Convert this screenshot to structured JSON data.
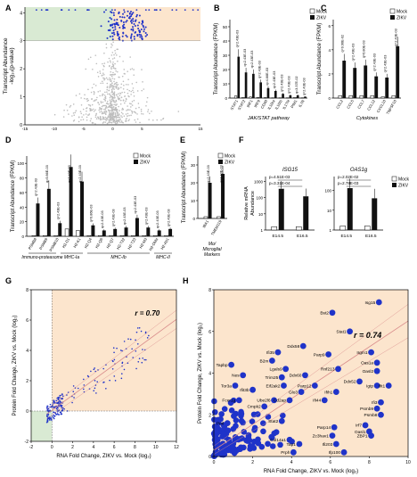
{
  "colors": {
    "point_blue": "#1f33c9",
    "grey": "#bdbdbd",
    "green_bg": "#d9ead3",
    "orange_bg": "#fce5cd",
    "zikv_bar": "#111111",
    "mock_bar": "#ffffff",
    "fit_line": "#d88a8a"
  },
  "panels": {
    "A": "A",
    "B": "B",
    "C": "C",
    "D": "D",
    "E": "E",
    "F": "F",
    "G": "G",
    "H": "H"
  },
  "legend": {
    "mock": "Mock",
    "zikv": "ZIKV"
  },
  "chart_data": [
    {
      "id": "A",
      "type": "scatter",
      "ylabel_line1": "Transcript Abundance",
      "ylabel_line2": "-log₁₀(p-value)",
      "x_ticks": [
        "-15",
        "-10",
        "-5",
        "0",
        "5",
        "15"
      ],
      "y_ticks": [
        "0",
        "1",
        "2",
        "3",
        "4"
      ],
      "xlim": [
        -15,
        15
      ],
      "ylim": [
        0,
        4.2
      ],
      "threshold_y": 3.0,
      "annotation_text": "~"
    },
    {
      "id": "B",
      "type": "bar",
      "xlabel": "JAK/STAT pathway",
      "ylabel": "Transcript Abundance (FPKM)",
      "y_ticks": [
        "0",
        "10",
        "20",
        "30",
        "40",
        "50"
      ],
      "ylim": [
        0,
        55
      ],
      "categories": [
        "STAT1",
        "STAT2",
        "IRF1",
        "IRF9",
        "CD40",
        "IL10ra",
        "IL10rb",
        "IL1TH",
        "PIM1",
        "IL7R"
      ],
      "series": [
        {
          "name": "Mock",
          "values": [
            1.5,
            0.5,
            0.8,
            0.5,
            0.3,
            0.2,
            0.2,
            0.2,
            0.5,
            0.2
          ]
        },
        {
          "name": "ZIKV",
          "values": [
            29,
            18,
            17,
            11,
            7,
            5,
            3,
            2,
            2,
            1
          ]
        }
      ],
      "pvalues": [
        "q=2.43E-03",
        "q=2.43E-03",
        "q=2.43E-03",
        "q=2.43E-03",
        "q=4.66E-03",
        "q=2.43E-03",
        "q=2.43E-03",
        "q=2.43E-03",
        "q=3.37E-02",
        "q=2.43E-03"
      ]
    },
    {
      "id": "C",
      "type": "bar",
      "xlabel": "Cytokines",
      "ylabel": "Transcript Abundance (FPKM)",
      "y_ticks": [
        "0",
        "2",
        "4",
        "6"
      ],
      "ylim": [
        0,
        6.5
      ],
      "categories": [
        "CCL2",
        "CCL5",
        "CCL7",
        "CCL12",
        "CXCL10",
        "TNFSF10"
      ],
      "series": [
        {
          "name": "Mock",
          "values": [
            0.2,
            0.2,
            0.2,
            0.2,
            0.1,
            0.2
          ]
        },
        {
          "name": "ZIKV",
          "values": [
            3.1,
            2.5,
            2.7,
            1.8,
            1.7,
            4.3
          ]
        }
      ],
      "pvalues": [
        "q=9.96E-02",
        "q=2.43E-03",
        "q=6.80E-03",
        "q=2.43E-03",
        "q=2.43E-03",
        "q=2.43E-03"
      ]
    },
    {
      "id": "D",
      "type": "bar",
      "ylabel": "Transcript Abundance (FPKM)",
      "y_ticks": [
        "0",
        "20",
        "40",
        "60",
        "80",
        "100"
      ],
      "ylim": [
        0,
        110
      ],
      "categories": [
        "PSMB8",
        "PSMB9",
        "PSMB10",
        "H2-D1",
        "H2-K1",
        "H2-Q4",
        "H2-Q6",
        "H2-Q7",
        "H2-T22",
        "H2-T23",
        "H2-M3",
        "H2-DMa",
        "H2-Ab1"
      ],
      "series": [
        {
          "name": "Mock",
          "values": [
            1,
            1,
            1,
            10,
            8,
            1,
            1,
            1,
            1,
            1,
            1,
            1,
            1
          ]
        },
        {
          "name": "ZIKV",
          "values": [
            45,
            65,
            18,
            95,
            75,
            15,
            8,
            10,
            12,
            25,
            12,
            8,
            10
          ]
        }
      ],
      "pvalues": [
        "q=2.43E-03",
        "q=9.86E-03",
        "q=2.43E-03",
        "q=2.43E-03",
        "q=2.43E-03",
        "q=9.86E-03",
        "q=2.43E-03",
        "q=2.43E-03",
        "q=2.43E-03",
        "q=2.43E-03",
        "q=2.43E-03",
        "q=2.43E-03",
        "q=2.43E-03"
      ],
      "groups": [
        {
          "label": "Immuno-proteasome",
          "line2": ""
        },
        {
          "label": "MHC-Ia",
          "line2": ""
        },
        {
          "label": "MHC-Ib",
          "line2": ""
        },
        {
          "label": "MHC-II",
          "line2": ""
        }
      ]
    },
    {
      "id": "E",
      "type": "bar",
      "ylabel": "Transcript Abundance (FPKM)",
      "y_ticks": [
        "0",
        "10",
        "20",
        "30"
      ],
      "ylim": [
        0,
        35
      ],
      "categories": [
        "IBA1",
        "TMEM119"
      ],
      "series": [
        {
          "name": "Mock",
          "values": [
            1,
            1
          ]
        },
        {
          "name": "ZIKV",
          "values": [
            20,
            25
          ]
        }
      ],
      "pvalues": [
        "q=2.43E-03",
        "q=2.43E-03"
      ],
      "group_label_line1": "Mo/",
      "group_label_line2": "Microglial",
      "group_label_line3": "Markers"
    },
    {
      "id": "F",
      "type": "bar",
      "ylabel_line1": "Relative mRNA",
      "ylabel_line2": "Abundance",
      "titles": [
        "ISG15",
        "OAS1g"
      ],
      "categories": [
        "E14.5",
        "E16.5"
      ],
      "left_y_ticks": [
        "1",
        "10",
        "100",
        "1000"
      ],
      "right_y_ticks": [
        "1",
        "10",
        "100"
      ],
      "left": {
        "mock": [
          1,
          1
        ],
        "zikv": [
          350,
          120
        ],
        "p_top": "p=4.51E-03",
        "p_bottom": "p=3.31E-04"
      },
      "right": {
        "mock": [
          1,
          1
        ],
        "zikv": [
          130,
          40
        ],
        "p_top": "p=2.02E-02",
        "p_bottom": "p=2.78E-03"
      }
    },
    {
      "id": "G",
      "type": "scatter",
      "xlabel": "RNA Fold Change, ZIKV vs. Mock (log₂)",
      "ylabel": "Protein Fold Change, ZIKV vs. Mock (log₂)",
      "x_ticks": [
        "-2",
        "0",
        "2",
        "4",
        "6",
        "8",
        "10",
        "12"
      ],
      "y_ticks": [
        "-2",
        "0",
        "2",
        "4",
        "6",
        "8"
      ],
      "xlim": [
        -2,
        12
      ],
      "ylim": [
        -2,
        8
      ],
      "r_label": "r = 0.70",
      "fit": {
        "slope": 0.5,
        "intercept": 0.05
      }
    },
    {
      "id": "H",
      "type": "scatter",
      "xlabel": "RNA Fold Change, ZIKV vs. Mock (log₂)",
      "ylabel": "Protein Fold Change, ZIKV vs. Mock (log₂)",
      "x_ticks": [
        "0",
        "2",
        "4",
        "6",
        "8",
        "10"
      ],
      "y_ticks": [
        "0",
        "2",
        "4",
        "6",
        "8"
      ],
      "xlim": [
        0,
        10
      ],
      "ylim": [
        0,
        8
      ],
      "r_label": "r = 0.74",
      "fit": {
        "slope": 0.62,
        "intercept": 0.3
      },
      "labeled_points": [
        {
          "name": "Isg15",
          "x": 8.5,
          "y": 7.4
        },
        {
          "name": "Bst2",
          "x": 6.1,
          "y": 6.9
        },
        {
          "name": "Stat1",
          "x": 7.0,
          "y": 6.0
        },
        {
          "name": "Ddx58",
          "x": 4.6,
          "y": 5.3
        },
        {
          "name": "Irgm1",
          "x": 8.1,
          "y": 5.0
        },
        {
          "name": "Parp9",
          "x": 5.9,
          "y": 4.9
        },
        {
          "name": "Oas1a",
          "x": 8.4,
          "y": 4.5
        },
        {
          "name": "Ifi35",
          "x": 3.3,
          "y": 5.0
        },
        {
          "name": "B2m",
          "x": 3.0,
          "y": 4.6
        },
        {
          "name": "Lgals9",
          "x": 3.7,
          "y": 4.2
        },
        {
          "name": "Rnf213",
          "x": 6.4,
          "y": 4.2
        },
        {
          "name": "Oasl2",
          "x": 8.4,
          "y": 4.1
        },
        {
          "name": "Tapbp",
          "x": 0.9,
          "y": 4.4
        },
        {
          "name": "Nes",
          "x": 1.5,
          "y": 3.9
        },
        {
          "name": "Trim25",
          "x": 3.5,
          "y": 3.8
        },
        {
          "name": "Ddx60",
          "x": 4.7,
          "y": 3.9
        },
        {
          "name": "Ddx52",
          "x": 7.5,
          "y": 3.6
        },
        {
          "name": "Tor3a",
          "x": 1.1,
          "y": 3.4
        },
        {
          "name": "Eif2ak2",
          "x": 3.6,
          "y": 3.4
        },
        {
          "name": "Parp12",
          "x": 5.2,
          "y": 3.4
        },
        {
          "name": "Igtp",
          "x": 8.4,
          "y": 3.4
        },
        {
          "name": "Ifit1",
          "x": 9.0,
          "y": 3.4
        },
        {
          "name": "Ifit3b",
          "x": 2.0,
          "y": 3.2
        },
        {
          "name": "Glo3",
          "x": 4.5,
          "y": 3.1
        },
        {
          "name": "Ifih1",
          "x": 6.3,
          "y": 3.1
        },
        {
          "name": "Fcer1g",
          "x": 1.3,
          "y": 2.7
        },
        {
          "name": "Ube2l6",
          "x": 3.1,
          "y": 2.7
        },
        {
          "name": "Cd2ap",
          "x": 3.9,
          "y": 2.7
        },
        {
          "name": "Ifi44",
          "x": 5.7,
          "y": 2.7
        },
        {
          "name": "Cmpk2",
          "x": 2.6,
          "y": 2.4
        },
        {
          "name": "Ifi3",
          "x": 8.6,
          "y": 2.6
        },
        {
          "name": "Psmb9",
          "x": 8.4,
          "y": 2.3
        },
        {
          "name": "Psmb8",
          "x": 8.6,
          "y": 2.0
        },
        {
          "name": "Stat2",
          "x": 3.5,
          "y": 1.7
        },
        {
          "name": "Pml",
          "x": 0.7,
          "y": 1.6
        },
        {
          "name": "Irf7",
          "x": 7.8,
          "y": 1.5
        },
        {
          "name": "Parp14",
          "x": 6.2,
          "y": 1.4
        },
        {
          "name": "Oasl1",
          "x": 8.0,
          "y": 1.2
        },
        {
          "name": "ZBP1",
          "x": 8.1,
          "y": 1.0
        },
        {
          "name": "Zc3hav1",
          "x": 6.1,
          "y": 1.0
        },
        {
          "name": "Col14a1",
          "x": 3.9,
          "y": 0.8
        },
        {
          "name": "Tap1",
          "x": 4.4,
          "y": 0.6
        },
        {
          "name": "Ifi203",
          "x": 6.3,
          "y": 0.6
        },
        {
          "name": "Prph",
          "x": 4.1,
          "y": 0.2
        },
        {
          "name": "Ifp100",
          "x": 6.7,
          "y": 0.2
        }
      ]
    }
  ]
}
